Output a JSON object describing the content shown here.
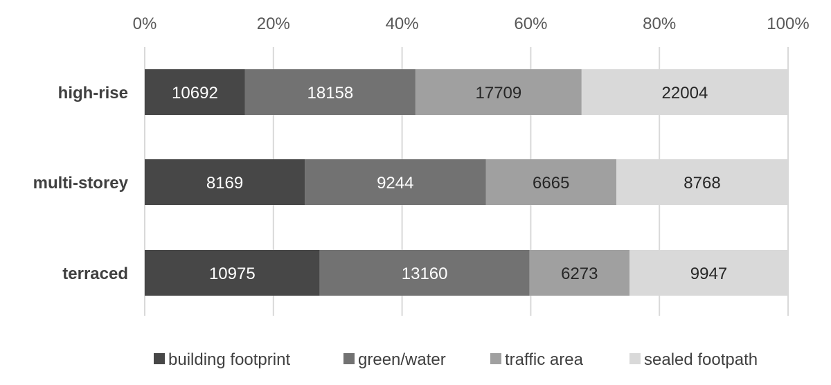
{
  "chart_data": {
    "type": "bar",
    "orientation": "horizontal",
    "stacked": "percent",
    "categories": [
      "high-rise",
      "multi-storey",
      "terraced"
    ],
    "series": [
      {
        "name": "building footprint",
        "values": [
          10692,
          8169,
          10975
        ],
        "color": "#474747",
        "label_color": "#ffffff"
      },
      {
        "name": "green/water",
        "values": [
          18158,
          9244,
          13160
        ],
        "color": "#727272",
        "label_color": "#ffffff"
      },
      {
        "name": "traffic area",
        "values": [
          17709,
          6665,
          6273
        ],
        "color": "#a0a0a0",
        "label_color": "#262626"
      },
      {
        "name": "sealed footpath",
        "values": [
          22004,
          8768,
          9947
        ],
        "color": "#d9d9d9",
        "label_color": "#262626"
      }
    ],
    "x_ticks": [
      "0%",
      "20%",
      "40%",
      "60%",
      "80%",
      "100%"
    ],
    "xlim": [
      0,
      100
    ],
    "x_axis_position": "top",
    "grid": true,
    "legend_position": "bottom"
  }
}
